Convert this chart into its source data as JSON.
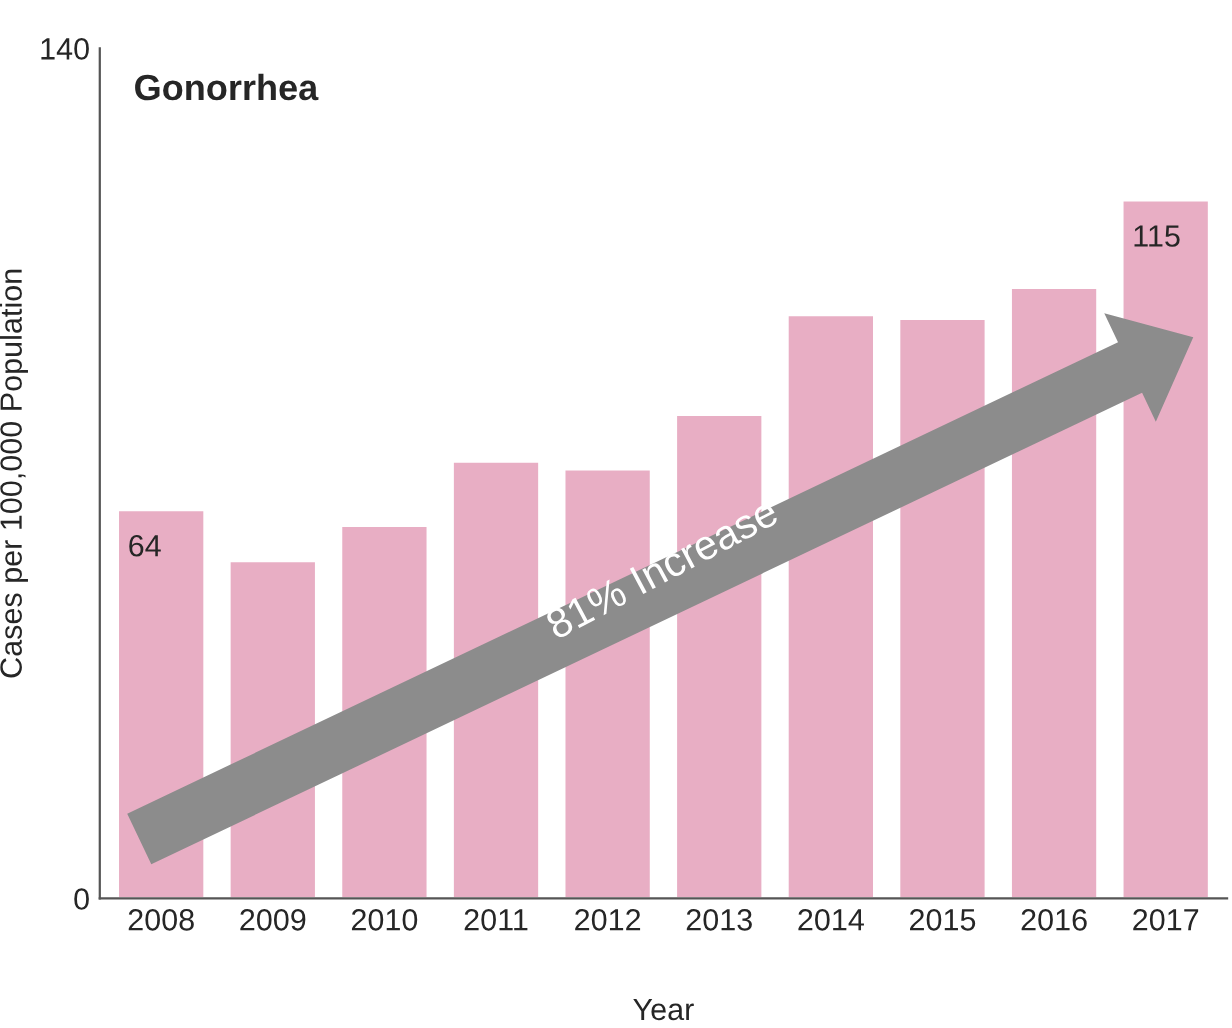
{
  "chart_data": {
    "type": "bar",
    "title": "Gonorrhea",
    "xlabel": "Year",
    "ylabel": "Cases per 100,000 Population",
    "categories": [
      "2008",
      "2009",
      "2010",
      "2011",
      "2012",
      "2013",
      "2014",
      "2015",
      "2016",
      "2017"
    ],
    "values": [
      64,
      55.6,
      61.4,
      72,
      70.7,
      79.7,
      96.1,
      95.5,
      100.6,
      115
    ],
    "value_labels": [
      "64",
      null,
      null,
      null,
      null,
      null,
      null,
      null,
      null,
      "115"
    ],
    "color": "#e8aec4",
    "ylim": [
      0,
      140
    ],
    "yticks": [
      0,
      140
    ],
    "grid": false,
    "legend": false,
    "annotations": [
      "81% Increase"
    ]
  }
}
